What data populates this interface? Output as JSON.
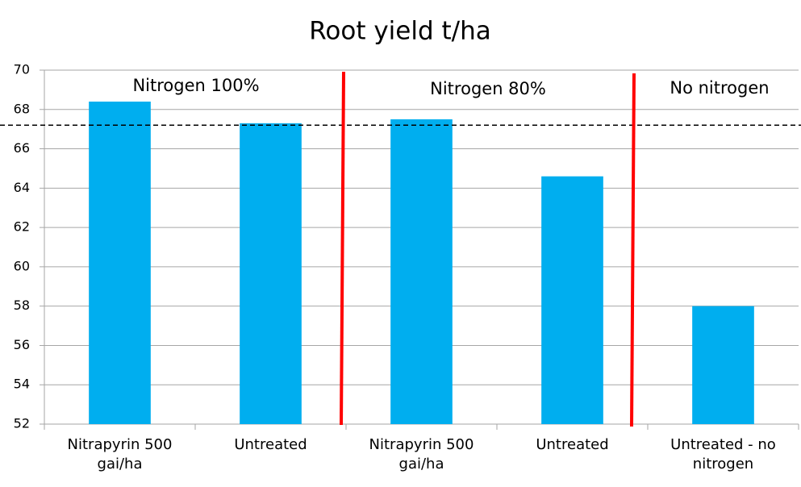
{
  "chart_data": {
    "type": "bar",
    "title": "Root yield t/ha",
    "categories": [
      "Nitrapyrin 500 gai/ha",
      "Untreated",
      "Nitrapyrin 500 gai/ha",
      "Untreated",
      "Untreated - no nitrogen"
    ],
    "values": [
      68.4,
      67.3,
      67.5,
      64.6,
      58.0
    ],
    "color": "#00aeef",
    "ylim": [
      52,
      70
    ],
    "yticks": [
      52,
      54,
      56,
      58,
      60,
      62,
      64,
      66,
      68,
      70
    ],
    "grid": true,
    "reference_line": 67.2,
    "annotations": [
      "Nitrogen 100%",
      "Nitrogen 80%",
      "No nitrogen"
    ]
  }
}
